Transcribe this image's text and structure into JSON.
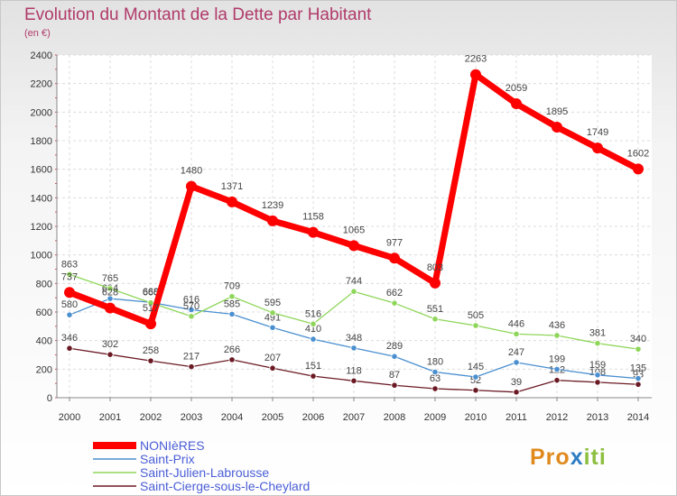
{
  "title": "Evolution du Montant de la Dette par Habitant",
  "subtitle": "(en €)",
  "logo": {
    "part1": "Pro",
    "part2": "x",
    "part3": "iti"
  },
  "chart_data": {
    "type": "line",
    "x": [
      "2000",
      "2001",
      "2002",
      "2003",
      "2004",
      "2005",
      "2006",
      "2007",
      "2008",
      "2009",
      "2010",
      "2011",
      "2012",
      "2013",
      "2014"
    ],
    "ylim": [
      0,
      2400
    ],
    "yticks": [
      0,
      200,
      400,
      600,
      800,
      1000,
      1200,
      1400,
      1600,
      1800,
      2000,
      2200,
      2400
    ],
    "grid": true,
    "legend_position": "bottom-left",
    "series": [
      {
        "name": "Saint-Cierge-sous-le-Cheylard",
        "color": "#6b1a24",
        "values": [
          346,
          302,
          258,
          217,
          266,
          207,
          151,
          118,
          87,
          63,
          52,
          39,
          122,
          108,
          93
        ]
      },
      {
        "name": "Saint-Prix",
        "color": "#4a8fd0",
        "values": [
          580,
          694,
          668,
          616,
          585,
          491,
          410,
          348,
          289,
          180,
          145,
          247,
          199,
          159,
          135
        ]
      },
      {
        "name": "Saint-Julien-Labrousse",
        "color": "#8ed659",
        "values": [
          863,
          765,
          665,
          570,
          709,
          595,
          516,
          744,
          662,
          551,
          505,
          446,
          436,
          381,
          340
        ]
      },
      {
        "name": "NONIèRES",
        "color": "#ff0000",
        "values": [
          737,
          628,
          517,
          1480,
          1371,
          1239,
          1158,
          1065,
          977,
          803,
          2263,
          2059,
          1895,
          1749,
          1602
        ]
      }
    ]
  }
}
